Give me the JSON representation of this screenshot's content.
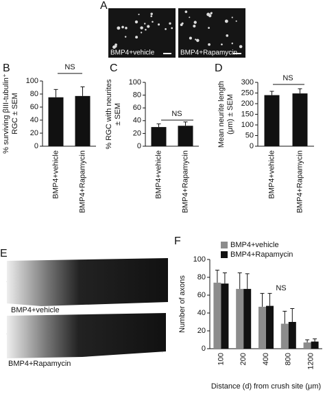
{
  "figure": {
    "panel_labels": [
      "A",
      "B",
      "C",
      "D",
      "E",
      "F"
    ],
    "image_captions_a": [
      "BMP4+vehicle",
      "BMP4+Rapamycin"
    ],
    "image_captions_e": [
      "BMP4+vehicle",
      "BMP4+Rapamycin"
    ]
  },
  "chart_data": [
    {
      "type": "bar",
      "ylabel": [
        "% surviving βIII-tubulin⁺",
        "RGC ± SEM"
      ],
      "categories": [
        "BMP4+vehicle",
        "BMP4+Rapamycin"
      ],
      "values": [
        75,
        77
      ],
      "errors": [
        12,
        14
      ],
      "color": "#111111",
      "ylim": [
        0,
        100
      ],
      "yticks": [
        0,
        20,
        40,
        60,
        80,
        100
      ],
      "annotation": "NS"
    },
    {
      "type": "bar",
      "ylabel": [
        "% RGC with neurites",
        "± SEM"
      ],
      "categories": [
        "BMP4+vehicle",
        "BMP4+Rapamycin"
      ],
      "values": [
        30,
        32
      ],
      "errors": [
        5,
        6
      ],
      "color": "#111111",
      "ylim": [
        0,
        100
      ],
      "yticks": [
        0,
        20,
        40,
        60,
        80,
        100
      ],
      "annotation": "NS"
    },
    {
      "type": "bar",
      "ylabel": [
        "Mean neurite length",
        "(μm) ± SEM"
      ],
      "categories": [
        "BMP4+vehicle",
        "BMP4+Rapamycin"
      ],
      "values": [
        240,
        248
      ],
      "errors": [
        18,
        22
      ],
      "color": "#111111",
      "ylim": [
        0,
        300
      ],
      "yticks": [
        0,
        50,
        100,
        150,
        200,
        250,
        300
      ],
      "annotation": "NS"
    },
    {
      "type": "grouped-bar",
      "ylabel": [
        "Number of axons"
      ],
      "xlabel": "Distance (d) from crush site (μm)",
      "categories": [
        "100",
        "200",
        "400",
        "800",
        "1200"
      ],
      "series": [
        {
          "name": "BMP4+vehicle",
          "color": "#8c8c8c",
          "values": [
            74,
            67,
            47,
            28,
            7
          ],
          "errors": [
            14,
            18,
            15,
            14,
            3
          ]
        },
        {
          "name": "BMP4+Rapamycin",
          "color": "#111111",
          "values": [
            73,
            67,
            48,
            30,
            8
          ],
          "errors": [
            12,
            17,
            14,
            15,
            3
          ]
        }
      ],
      "ylim": [
        0,
        100
      ],
      "yticks": [
        0,
        20,
        40,
        60,
        80,
        100
      ],
      "annotation": "NS"
    }
  ]
}
